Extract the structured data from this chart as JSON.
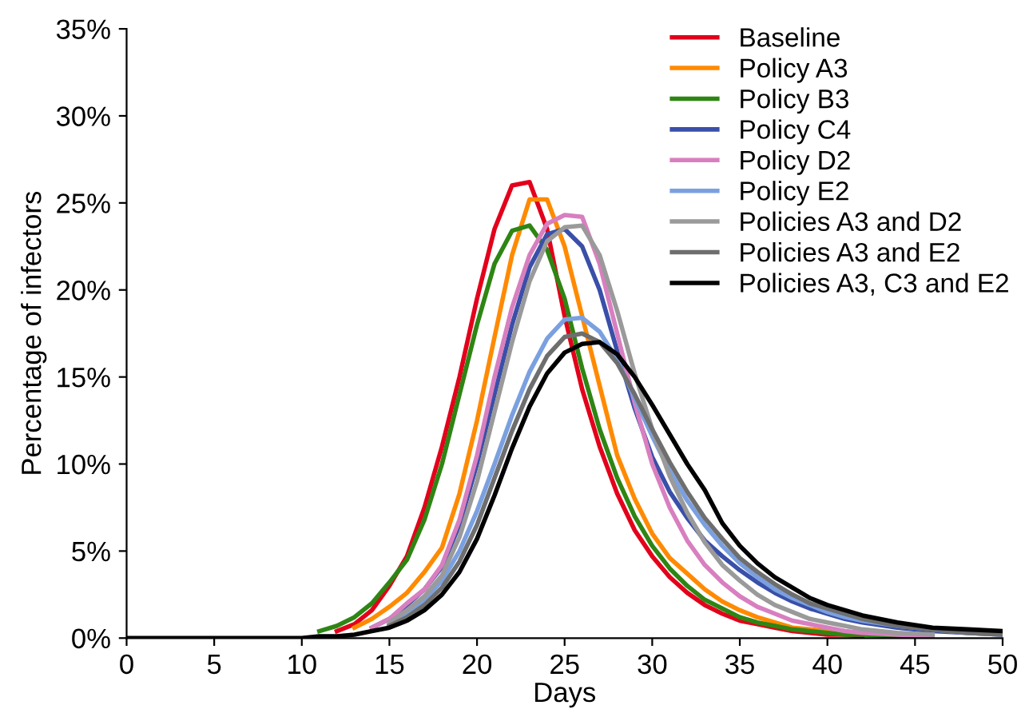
{
  "chart_data": {
    "type": "line",
    "xlabel": "Days",
    "ylabel": "Percentage of infectors",
    "x": [
      0,
      5,
      8,
      9,
      10,
      11,
      12,
      13,
      14,
      15,
      16,
      17,
      18,
      19,
      20,
      21,
      22,
      23,
      24,
      25,
      26,
      27,
      28,
      29,
      30,
      31,
      32,
      33,
      34,
      35,
      36,
      37,
      38,
      39,
      40,
      41,
      42,
      44,
      46,
      48,
      50
    ],
    "series": [
      {
        "name": "Baseline",
        "color": "#e3001b",
        "x": [
          12,
          13,
          14,
          15,
          16,
          17,
          18,
          19,
          20,
          21,
          22,
          23,
          24,
          25,
          26,
          27,
          28,
          29,
          30,
          31,
          32,
          33,
          34,
          35,
          36,
          37,
          38,
          39,
          40,
          41,
          42
        ],
        "values": [
          0.4,
          0.8,
          1.6,
          3.0,
          4.7,
          7.5,
          11,
          15,
          19.5,
          23.5,
          26.0,
          26.2,
          23.5,
          18.5,
          14.3,
          11.0,
          8.3,
          6.2,
          4.7,
          3.5,
          2.6,
          1.9,
          1.4,
          1.0,
          0.8,
          0.6,
          0.4,
          0.3,
          0.2,
          0.2,
          0.1
        ]
      },
      {
        "name": "Policy A3",
        "color": "#ff8a00",
        "x": [
          13,
          14,
          15,
          16,
          17,
          18,
          19,
          20,
          21,
          22,
          23,
          24,
          25,
          26,
          27,
          28,
          29,
          30,
          31,
          32,
          33,
          34,
          35,
          36,
          37,
          38,
          39,
          40,
          41
        ],
        "values": [
          0.6,
          1.1,
          1.8,
          2.6,
          3.8,
          5.2,
          8.3,
          12.5,
          17.3,
          22,
          25.2,
          25.2,
          22.5,
          18.5,
          14.5,
          10.5,
          8.0,
          6.0,
          4.6,
          3.7,
          2.8,
          2.1,
          1.6,
          1.2,
          0.9,
          0.6,
          0.5,
          0.4,
          0.3
        ]
      },
      {
        "name": "Policy B3",
        "color": "#2e8514",
        "x": [
          11,
          12,
          13,
          14,
          15,
          16,
          17,
          18,
          19,
          20,
          21,
          22,
          23,
          24,
          25,
          26,
          27,
          28,
          29,
          30,
          31,
          32,
          33,
          34,
          35,
          36,
          37,
          38,
          39,
          40,
          41,
          42,
          44,
          46
        ],
        "values": [
          0.4,
          0.7,
          1.2,
          2.0,
          3.2,
          4.5,
          6.8,
          10,
          14,
          18,
          21.5,
          23.4,
          23.7,
          22.3,
          19.5,
          15.5,
          12.0,
          9.2,
          7.0,
          5.3,
          4.0,
          3.0,
          2.2,
          1.7,
          1.2,
          0.9,
          0.7,
          0.5,
          0.4,
          0.3,
          0.2,
          0.2,
          0.1,
          0.1
        ]
      },
      {
        "name": "Policy C4",
        "color": "#3a4fa8",
        "x": [
          14,
          15,
          16,
          17,
          18,
          19,
          20,
          21,
          22,
          23,
          24,
          25,
          26,
          27,
          28,
          29,
          30,
          31,
          32,
          33,
          34,
          35,
          36,
          37,
          38,
          39,
          40,
          41,
          42,
          44,
          46,
          48,
          50
        ],
        "values": [
          0.6,
          1.1,
          1.9,
          2.8,
          4.1,
          6.5,
          10,
          14,
          18,
          21.3,
          23.2,
          23.5,
          22.5,
          20,
          16.5,
          13.2,
          10.4,
          8.4,
          6.9,
          5.6,
          4.7,
          3.9,
          3.2,
          2.6,
          2.1,
          1.7,
          1.4,
          1.1,
          0.9,
          0.6,
          0.4,
          0.3,
          0.2
        ]
      },
      {
        "name": "Policy D2",
        "color": "#d87fc0",
        "x": [
          14,
          15,
          16,
          17,
          18,
          19,
          20,
          21,
          22,
          23,
          24,
          25,
          26,
          27,
          28,
          29,
          30,
          31,
          32,
          33,
          34,
          35,
          36,
          37,
          38,
          39,
          40,
          41,
          42,
          44,
          46
        ],
        "values": [
          0.6,
          1.1,
          2.0,
          2.8,
          4.2,
          6.8,
          10.5,
          15.0,
          19,
          22,
          23.8,
          24.3,
          24.2,
          21.5,
          17.5,
          13.5,
          10,
          7.5,
          5.6,
          4.2,
          3.2,
          2.4,
          1.8,
          1.4,
          1.0,
          0.8,
          0.6,
          0.4,
          0.3,
          0.2,
          0.1
        ]
      },
      {
        "name": "Policy E2",
        "color": "#7aa0e0",
        "x": [
          15,
          16,
          17,
          18,
          19,
          20,
          21,
          22,
          23,
          24,
          25,
          26,
          27,
          28,
          29,
          30,
          31,
          32,
          33,
          34,
          35,
          36,
          37,
          38,
          39,
          40,
          41,
          42,
          44,
          46,
          48,
          50
        ],
        "values": [
          0.8,
          1.4,
          2.2,
          3.3,
          5,
          7.3,
          10,
          12.8,
          15.3,
          17.2,
          18.3,
          18.4,
          17.6,
          16,
          13.8,
          11.6,
          9.6,
          7.9,
          6.5,
          5.3,
          4.3,
          3.5,
          2.8,
          2.3,
          1.9,
          1.5,
          1.2,
          1.0,
          0.7,
          0.5,
          0.3,
          0.2
        ]
      },
      {
        "name": "Policies A3 and D2",
        "color": "#9a9a9a",
        "x": [
          15,
          16,
          17,
          18,
          19,
          20,
          21,
          22,
          23,
          24,
          25,
          26,
          27,
          28,
          29,
          30,
          31,
          32,
          33,
          34,
          35,
          36,
          37,
          38,
          39,
          40,
          41,
          42,
          44,
          46
        ],
        "values": [
          0.9,
          1.6,
          2.4,
          3.6,
          5.8,
          9,
          13,
          17,
          20.5,
          22.8,
          23.6,
          23.7,
          22,
          18.8,
          15.2,
          12,
          9.3,
          7.2,
          5.5,
          4.2,
          3.3,
          2.5,
          1.9,
          1.5,
          1.1,
          0.9,
          0.7,
          0.5,
          0.3,
          0.2
        ]
      },
      {
        "name": "Policies A3 and E2",
        "color": "#6e6e6e",
        "x": [
          15,
          16,
          17,
          18,
          19,
          20,
          21,
          22,
          23,
          24,
          25,
          26,
          27,
          28,
          29,
          30,
          31,
          32,
          33,
          34,
          35,
          36,
          37,
          38,
          39,
          40,
          41,
          42,
          44,
          46,
          48,
          50
        ],
        "values": [
          0.7,
          1.2,
          1.9,
          2.9,
          4.4,
          6.5,
          9.2,
          11.9,
          14.3,
          16.2,
          17.3,
          17.5,
          17,
          15.8,
          14,
          12,
          10.1,
          8.4,
          6.9,
          5.7,
          4.6,
          3.8,
          3.1,
          2.5,
          2.0,
          1.7,
          1.4,
          1.1,
          0.7,
          0.5,
          0.3,
          0.2
        ]
      },
      {
        "name": "Policies A3, C3 and E2",
        "color": "#000000",
        "values": [
          0,
          0,
          0,
          0,
          0,
          0.1,
          0.1,
          0.2,
          0.4,
          0.6,
          1.0,
          1.6,
          2.5,
          3.8,
          5.7,
          8.2,
          10.9,
          13.3,
          15.2,
          16.4,
          16.9,
          17.0,
          16.3,
          15.0,
          13.4,
          11.7,
          10.0,
          8.5,
          6.6,
          5.3,
          4.3,
          3.5,
          2.9,
          2.3,
          1.9,
          1.6,
          1.3,
          0.9,
          0.6,
          0.5,
          0.4
        ]
      }
    ],
    "xlim": [
      0,
      50
    ],
    "xticks": [
      0,
      5,
      10,
      15,
      20,
      25,
      30,
      35,
      40,
      45,
      50
    ],
    "ylim": [
      0,
      35
    ],
    "yticks": [
      {
        "value": 0,
        "label": "0%"
      },
      {
        "value": 5,
        "label": "5%"
      },
      {
        "value": 10,
        "label": "10%"
      },
      {
        "value": 15,
        "label": "15%"
      },
      {
        "value": 20,
        "label": "20%"
      },
      {
        "value": 25,
        "label": "25%"
      },
      {
        "value": 30,
        "label": "30%"
      },
      {
        "value": 35,
        "label": "35%"
      }
    ],
    "legend": "top right",
    "grid": false,
    "marker": "none",
    "line_style": "solid"
  }
}
